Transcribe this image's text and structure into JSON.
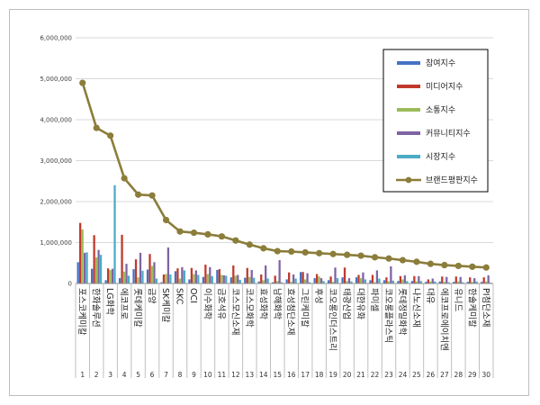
{
  "chart_data": {
    "type": "bar",
    "y_ticks": [
      "0",
      "1,000,000",
      "2,000,000",
      "3,000,000",
      "4,000,000",
      "5,000,000",
      "6,000,000"
    ],
    "ylim": [
      0,
      6000000
    ],
    "ranks": [
      "1",
      "2",
      "3",
      "4",
      "5",
      "6",
      "7",
      "8",
      "9",
      "10",
      "11",
      "12",
      "13",
      "14",
      "15",
      "16",
      "17",
      "18",
      "19",
      "20",
      "21",
      "22",
      "23",
      "24",
      "25",
      "26",
      "27",
      "28",
      "29",
      "30"
    ],
    "categories": [
      "포스코케미칼",
      "한화솔루션",
      "LG화학",
      "에코프로",
      "롯데케미칼",
      "금양",
      "SK케미칼",
      "SKC",
      "OCI",
      "이수화학",
      "금호석유",
      "코스모신소재",
      "코스모화학",
      "효성화학",
      "남해화학",
      "효성첨단소재",
      "그린케미칼",
      "후성",
      "코오롱인더스트리",
      "태광산업",
      "대한유화",
      "파미셀",
      "코오롱플라스틱",
      "롯데정밀화학",
      "나노신소재",
      "대유",
      "에코프로에이치엔",
      "유니드",
      "한솔케미칼",
      "PI첨단소재"
    ],
    "legend_position": "right",
    "series": [
      {
        "name": "참여지수",
        "color": "#4472c4",
        "type": "bar",
        "values": [
          520000,
          360000,
          80000,
          130000,
          350000,
          340000,
          30000,
          300000,
          100000,
          160000,
          330000,
          150000,
          140000,
          50000,
          30000,
          100000,
          280000,
          130000,
          80000,
          150000,
          150000,
          80000,
          80000,
          60000,
          60000,
          40000,
          50000,
          40000,
          40000,
          40000
        ]
      },
      {
        "name": "미디어지수",
        "color": "#c0392b",
        "type": "bar",
        "values": [
          1480000,
          1180000,
          370000,
          1190000,
          590000,
          720000,
          220000,
          370000,
          380000,
          460000,
          350000,
          440000,
          380000,
          220000,
          190000,
          270000,
          280000,
          230000,
          170000,
          390000,
          210000,
          210000,
          150000,
          180000,
          180000,
          100000,
          170000,
          170000,
          150000,
          150000
        ]
      },
      {
        "name": "소통지수",
        "color": "#9bbb59",
        "type": "bar",
        "values": [
          1320000,
          640000,
          330000,
          290000,
          150000,
          430000,
          230000,
          120000,
          230000,
          230000,
          210000,
          190000,
          160000,
          80000,
          60000,
          40000,
          100000,
          170000,
          40000,
          60000,
          130000,
          30000,
          50000,
          100000,
          50000,
          50000,
          40000,
          50000,
          40000,
          50000
        ]
      },
      {
        "name": "커뮤니티지수",
        "color": "#7f64a2",
        "type": "bar",
        "values": [
          750000,
          820000,
          360000,
          480000,
          750000,
          520000,
          880000,
          400000,
          320000,
          400000,
          200000,
          210000,
          330000,
          440000,
          570000,
          220000,
          250000,
          130000,
          390000,
          130000,
          270000,
          320000,
          420000,
          200000,
          180000,
          120000,
          160000,
          160000,
          130000,
          200000
        ]
      },
      {
        "name": "시장지수",
        "color": "#4bacc6",
        "type": "bar",
        "values": [
          760000,
          700000,
          2400000,
          190000,
          310000,
          120000,
          220000,
          320000,
          210000,
          180000,
          190000,
          90000,
          140000,
          120000,
          30000,
          120000,
          30000,
          60000,
          130000,
          50000,
          100000,
          120000,
          70000,
          60000,
          60000,
          50000,
          30000,
          30000,
          50000,
          20000
        ]
      },
      {
        "name": "브랜드평판지수",
        "color": "#8b7d3a",
        "type": "line",
        "values": [
          4900000,
          3800000,
          3610000,
          2570000,
          2170000,
          2150000,
          1550000,
          1270000,
          1240000,
          1200000,
          1150000,
          1050000,
          950000,
          860000,
          790000,
          780000,
          760000,
          740000,
          720000,
          700000,
          680000,
          640000,
          610000,
          570000,
          530000,
          480000,
          450000,
          430000,
          410000,
          390000
        ]
      }
    ]
  }
}
